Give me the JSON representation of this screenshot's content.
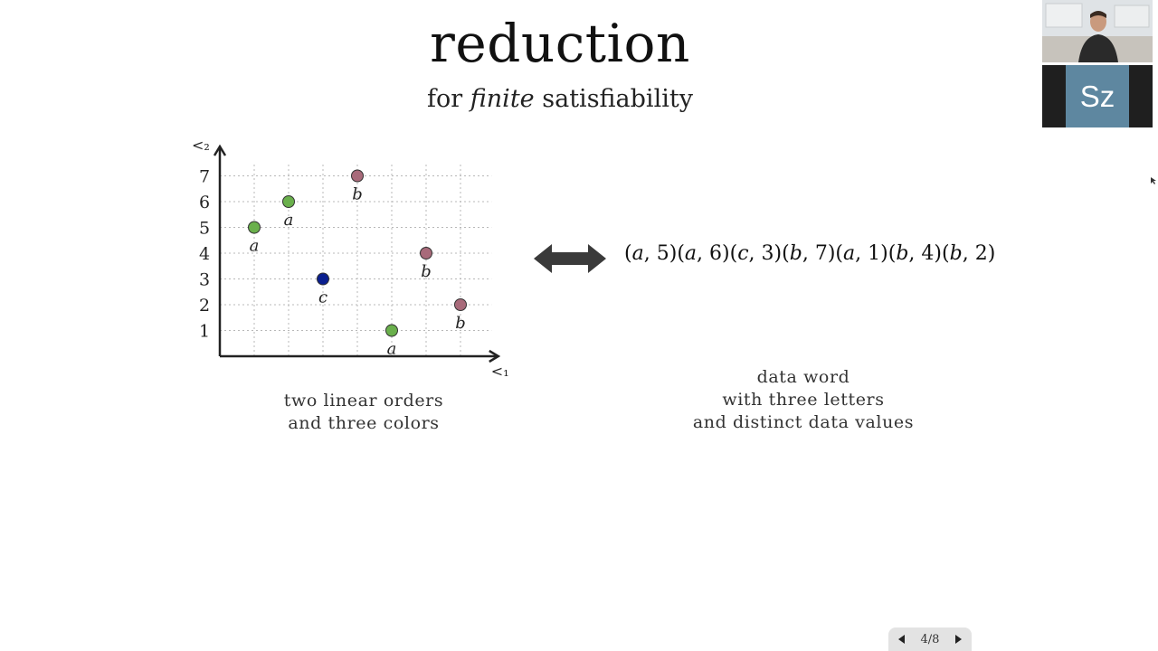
{
  "slide": {
    "title": "reduction",
    "subtitle_prefix": "for",
    "subtitle_emphasis": "finite",
    "subtitle_suffix": "satisfiability"
  },
  "plot": {
    "y_axis_label": "<₂",
    "x_axis_label": "<₁",
    "y_ticks": [
      "1",
      "2",
      "3",
      "4",
      "5",
      "6",
      "7"
    ],
    "points": [
      {
        "x": 1,
        "y": 5,
        "label": "a",
        "color": "#6ab04c"
      },
      {
        "x": 2,
        "y": 6,
        "label": "a",
        "color": "#6ab04c"
      },
      {
        "x": 3,
        "y": 3,
        "label": "c",
        "color": "#0a1f8f"
      },
      {
        "x": 4,
        "y": 7,
        "label": "b",
        "color": "#a86a7a"
      },
      {
        "x": 5,
        "y": 1,
        "label": "a",
        "color": "#6ab04c"
      },
      {
        "x": 6,
        "y": 4,
        "label": "b",
        "color": "#a86a7a"
      },
      {
        "x": 7,
        "y": 2,
        "label": "b",
        "color": "#a86a7a"
      }
    ]
  },
  "captions": {
    "left_line1": "two linear orders",
    "left_line2": "and three colors",
    "right_line1": "data word",
    "right_line2": "with three letters",
    "right_line3": "and distinct data values"
  },
  "data_word": [
    {
      "letter": "a",
      "value": "5"
    },
    {
      "letter": "a",
      "value": "6"
    },
    {
      "letter": "c",
      "value": "3"
    },
    {
      "letter": "b",
      "value": "7"
    },
    {
      "letter": "a",
      "value": "1"
    },
    {
      "letter": "b",
      "value": "4"
    },
    {
      "letter": "b",
      "value": "2"
    }
  ],
  "participant": {
    "initials": "Sz"
  },
  "pager": {
    "counter": "4/8"
  },
  "icons": {
    "arrow": "double-arrow-icon",
    "prev": "triangle-left-icon",
    "next": "triangle-right-icon"
  }
}
